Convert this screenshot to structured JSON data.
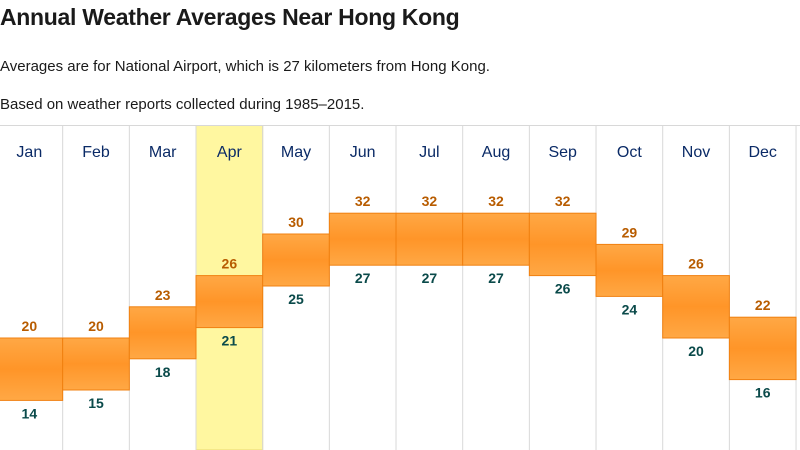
{
  "header": {
    "title": "Annual Weather Averages Near Hong Kong",
    "subtitle_location": "Averages are for National Airport, which is 27 kilometers from Hong Kong.",
    "subtitle_period": "Based on weather reports collected during 1985–2015."
  },
  "colors": {
    "bar_fill": "#ff9a33",
    "bar_fill_dark": "#f08010",
    "highlight_column": "#fff7a0",
    "gridline": "#d8d8d8",
    "high_label": "#b85c00",
    "low_label": "#0a4a4a",
    "month_label": "#0a2a66"
  },
  "chart_data": {
    "type": "floating-bar",
    "categories": [
      "Jan",
      "Feb",
      "Mar",
      "Apr",
      "May",
      "Jun",
      "Jul",
      "Aug",
      "Sep",
      "Oct",
      "Nov",
      "Dec"
    ],
    "series": [
      {
        "name": "high",
        "values": [
          20,
          20,
          23,
          26,
          30,
          32,
          32,
          32,
          32,
          29,
          26,
          22
        ]
      },
      {
        "name": "low",
        "values": [
          14,
          15,
          18,
          21,
          25,
          27,
          27,
          27,
          26,
          24,
          20,
          16
        ]
      }
    ],
    "highlighted_category": "Apr",
    "ylim": [
      10,
      40
    ],
    "grid": "vertical"
  }
}
